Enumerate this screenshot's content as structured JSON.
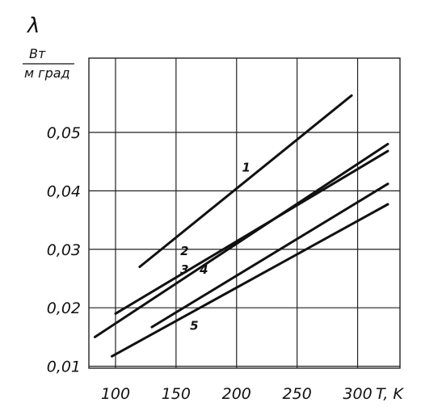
{
  "chart_data": {
    "type": "line",
    "title": "",
    "ylabel": "λ",
    "yunit_numerator": "Вт",
    "yunit_denominator": "м град",
    "xlabel": "T, K",
    "xlim": [
      78,
      335
    ],
    "ylim": [
      0.00967,
      0.0627
    ],
    "grid": true,
    "x_ticks": [
      100,
      150,
      200,
      250,
      300
    ],
    "x_tick_labels": [
      "100",
      "150",
      "200",
      "250",
      "300"
    ],
    "y_ticks": [
      0.01,
      0.02,
      0.03,
      0.04,
      0.05
    ],
    "y_tick_labels": [
      "0,01",
      "0,02",
      "0,03",
      "0,04",
      "0,05"
    ],
    "series": [
      {
        "name": "1",
        "x": [
          120,
          295
        ],
        "y": [
          0.027,
          0.0563
        ]
      },
      {
        "name": "2",
        "x": [
          100,
          325
        ],
        "y": [
          0.019,
          0.0468
        ]
      },
      {
        "name": "3",
        "x": [
          83,
          325
        ],
        "y": [
          0.015,
          0.048
        ]
      },
      {
        "name": "4",
        "x": [
          130,
          325
        ],
        "y": [
          0.0167,
          0.0412
        ]
      },
      {
        "name": "5",
        "x": [
          97,
          325
        ],
        "y": [
          0.0117,
          0.0377
        ]
      }
    ],
    "series_label_positions": [
      {
        "name": "1",
        "x": 208,
        "y": 0.0433
      },
      {
        "name": "2",
        "x": 157,
        "y": 0.029
      },
      {
        "name": "3",
        "x": 157,
        "y": 0.0258
      },
      {
        "name": "4",
        "x": 173,
        "y": 0.0258
      },
      {
        "name": "5",
        "x": 165,
        "y": 0.0162
      }
    ]
  }
}
